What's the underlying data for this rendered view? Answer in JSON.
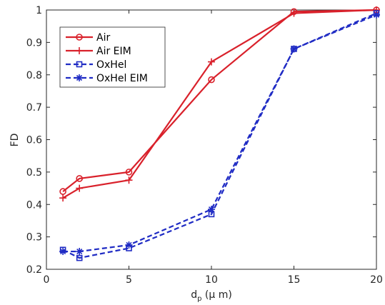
{
  "chart_data": {
    "type": "line",
    "xlabel": {
      "main": "d",
      "sub": "p",
      "rest": " (μ m)"
    },
    "ylabel": "FD",
    "xlim": [
      0,
      20
    ],
    "ylim": [
      0.2,
      1
    ],
    "xticks": [
      "0",
      "5",
      "10",
      "15",
      "20"
    ],
    "yticks": [
      "0.2",
      "0.3",
      "0.4",
      "0.5",
      "0.6",
      "0.7",
      "0.8",
      "0.9",
      "1"
    ],
    "grid": false,
    "legend_position": "top-left",
    "series": [
      {
        "name": "Air",
        "color": "#d9212b",
        "dashed": false,
        "marker": "circle",
        "x": [
          1,
          2,
          5,
          10,
          15,
          20
        ],
        "y": [
          0.44,
          0.48,
          0.5,
          0.785,
          0.995,
          1.0
        ]
      },
      {
        "name": "Air EIM",
        "color": "#d9212b",
        "dashed": false,
        "marker": "plus",
        "x": [
          1,
          2,
          5,
          10,
          15,
          20
        ],
        "y": [
          0.42,
          0.45,
          0.475,
          0.84,
          0.99,
          1.0
        ]
      },
      {
        "name": "OxHel",
        "color": "#1f2bc4",
        "dashed": true,
        "marker": "square",
        "x": [
          1,
          2,
          5,
          10,
          15,
          20
        ],
        "y": [
          0.26,
          0.235,
          0.265,
          0.37,
          0.88,
          0.99
        ]
      },
      {
        "name": "OxHel EIM",
        "color": "#1f2bc4",
        "dashed": true,
        "marker": "star",
        "x": [
          1,
          2,
          5,
          10,
          15,
          20
        ],
        "y": [
          0.255,
          0.255,
          0.275,
          0.385,
          0.88,
          0.985
        ]
      }
    ]
  }
}
